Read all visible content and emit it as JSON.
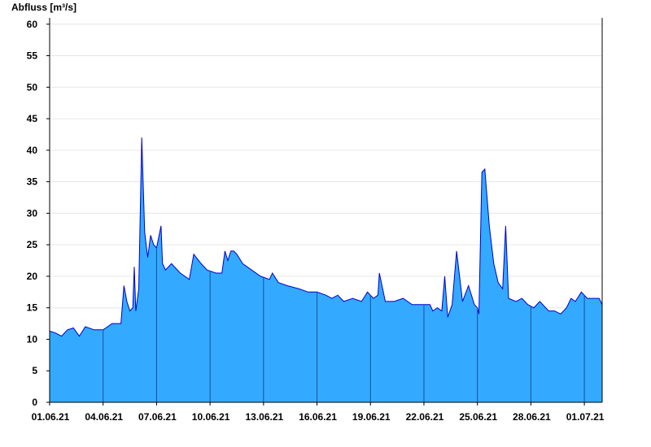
{
  "chart_data": {
    "type": "area",
    "title": "",
    "ylabel": "Abfluss [m³/s]",
    "xlabel": "",
    "xlim": [
      "2021-06-01",
      "2021-07-02"
    ],
    "ylim": [
      0,
      61
    ],
    "yticks": [
      0,
      5,
      10,
      15,
      20,
      25,
      30,
      35,
      40,
      45,
      50,
      55,
      60
    ],
    "xtick_labels": [
      "01.06.21",
      "04.06.21",
      "07.06.21",
      "10.06.21",
      "13.06.21",
      "16.06.21",
      "19.06.21",
      "22.06.21",
      "25.06.21",
      "28.06.21",
      "01.07.21"
    ],
    "xtick_dates": [
      "2021-06-01",
      "2021-06-04",
      "2021-06-07",
      "2021-06-10",
      "2021-06-13",
      "2021-06-16",
      "2021-06-19",
      "2021-06-22",
      "2021-06-25",
      "2021-06-28",
      "2021-07-01"
    ],
    "grid": true,
    "colors": {
      "fill": "#33aaff",
      "line": "#0000cc",
      "grid": "#e6e6e6"
    },
    "series": [
      {
        "x": [
          "2021-06-01T00:00",
          "2021-06-01T08:00",
          "2021-06-01T16:00",
          "2021-06-02T00:00",
          "2021-06-02T08:00",
          "2021-06-02T16:00",
          "2021-06-03T00:00",
          "2021-06-03T12:00",
          "2021-06-04T00:00",
          "2021-06-04T12:00",
          "2021-06-04T20:00",
          "2021-06-05T00:00",
          "2021-06-05T04:00",
          "2021-06-05T08:00",
          "2021-06-05T12:00",
          "2021-06-05T16:00",
          "2021-06-05T18:00",
          "2021-06-05T20:00",
          "2021-06-06T00:00",
          "2021-06-06T04:00",
          "2021-06-06T08:00",
          "2021-06-06T12:00",
          "2021-06-06T16:00",
          "2021-06-06T20:00",
          "2021-06-07T00:00",
          "2021-06-07T06:00",
          "2021-06-07T08:00",
          "2021-06-07T12:00",
          "2021-06-07T20:00",
          "2021-06-08T08:00",
          "2021-06-08T20:00",
          "2021-06-09T02:00",
          "2021-06-09T12:00",
          "2021-06-09T20:00",
          "2021-06-10T08:00",
          "2021-06-10T16:00",
          "2021-06-10T20:00",
          "2021-06-11T00:00",
          "2021-06-11T04:00",
          "2021-06-11T08:00",
          "2021-06-11T12:00",
          "2021-06-11T20:00",
          "2021-06-12T08:00",
          "2021-06-12T20:00",
          "2021-06-13T08:00",
          "2021-06-13T12:00",
          "2021-06-13T20:00",
          "2021-06-14T08:00",
          "2021-06-15T00:00",
          "2021-06-15T12:00",
          "2021-06-16T00:00",
          "2021-06-16T12:00",
          "2021-06-16T20:00",
          "2021-06-17T04:00",
          "2021-06-17T12:00",
          "2021-06-18T00:00",
          "2021-06-18T12:00",
          "2021-06-18T20:00",
          "2021-06-19T04:00",
          "2021-06-19T10:00",
          "2021-06-19T12:00",
          "2021-06-19T20:00",
          "2021-06-20T08:00",
          "2021-06-20T20:00",
          "2021-06-21T08:00",
          "2021-06-21T20:00",
          "2021-06-22T08:00",
          "2021-06-22T12:00",
          "2021-06-22T18:00",
          "2021-06-23T00:00",
          "2021-06-23T04:00",
          "2021-06-23T08:00",
          "2021-06-23T14:00",
          "2021-06-23T20:00",
          "2021-06-24T04:00",
          "2021-06-24T12:00",
          "2021-06-24T20:00",
          "2021-06-25T00:00",
          "2021-06-25T02:00",
          "2021-06-25T06:00",
          "2021-06-25T10:00",
          "2021-06-25T16:00",
          "2021-06-25T22:00",
          "2021-06-26T04:00",
          "2021-06-26T10:00",
          "2021-06-26T14:00",
          "2021-06-26T18:00",
          "2021-06-27T04:00",
          "2021-06-27T12:00",
          "2021-06-27T20:00",
          "2021-06-28T04:00",
          "2021-06-28T12:00",
          "2021-06-29T00:00",
          "2021-06-29T08:00",
          "2021-06-29T16:00",
          "2021-06-30T00:00",
          "2021-06-30T06:00",
          "2021-06-30T12:00",
          "2021-06-30T20:00",
          "2021-07-01T04:00",
          "2021-07-01T12:00",
          "2021-07-01T20:00",
          "2021-07-02T00:00"
        ],
        "y": [
          11.3,
          11.0,
          10.5,
          11.5,
          11.8,
          10.5,
          12.0,
          11.5,
          11.5,
          12.5,
          12.5,
          12.5,
          18.5,
          16.0,
          14.5,
          15.0,
          21.5,
          14.5,
          18.0,
          42.0,
          27.0,
          23.0,
          26.5,
          25.0,
          24.5,
          28.0,
          22.0,
          21.0,
          22.0,
          20.5,
          19.5,
          23.5,
          22.0,
          21.0,
          20.5,
          20.5,
          24.0,
          22.5,
          24.0,
          24.0,
          23.5,
          22.0,
          21.0,
          20.0,
          19.5,
          20.5,
          19.0,
          18.5,
          18.0,
          17.5,
          17.5,
          17.0,
          16.5,
          17.0,
          16.0,
          16.5,
          16.0,
          17.5,
          16.5,
          17.0,
          20.5,
          16.0,
          16.0,
          16.5,
          15.5,
          15.5,
          15.5,
          14.5,
          15.0,
          14.5,
          20.0,
          13.5,
          15.5,
          24.0,
          16.0,
          18.5,
          15.5,
          15.0,
          14.0,
          36.5,
          37.0,
          28.0,
          22.0,
          19.0,
          18.0,
          28.0,
          16.5,
          16.0,
          16.5,
          15.5,
          15.0,
          16.0,
          14.5,
          14.5,
          14.0,
          15.0,
          16.5,
          16.0,
          17.5,
          16.5,
          16.5,
          16.5,
          15.5
        ]
      }
    ]
  }
}
